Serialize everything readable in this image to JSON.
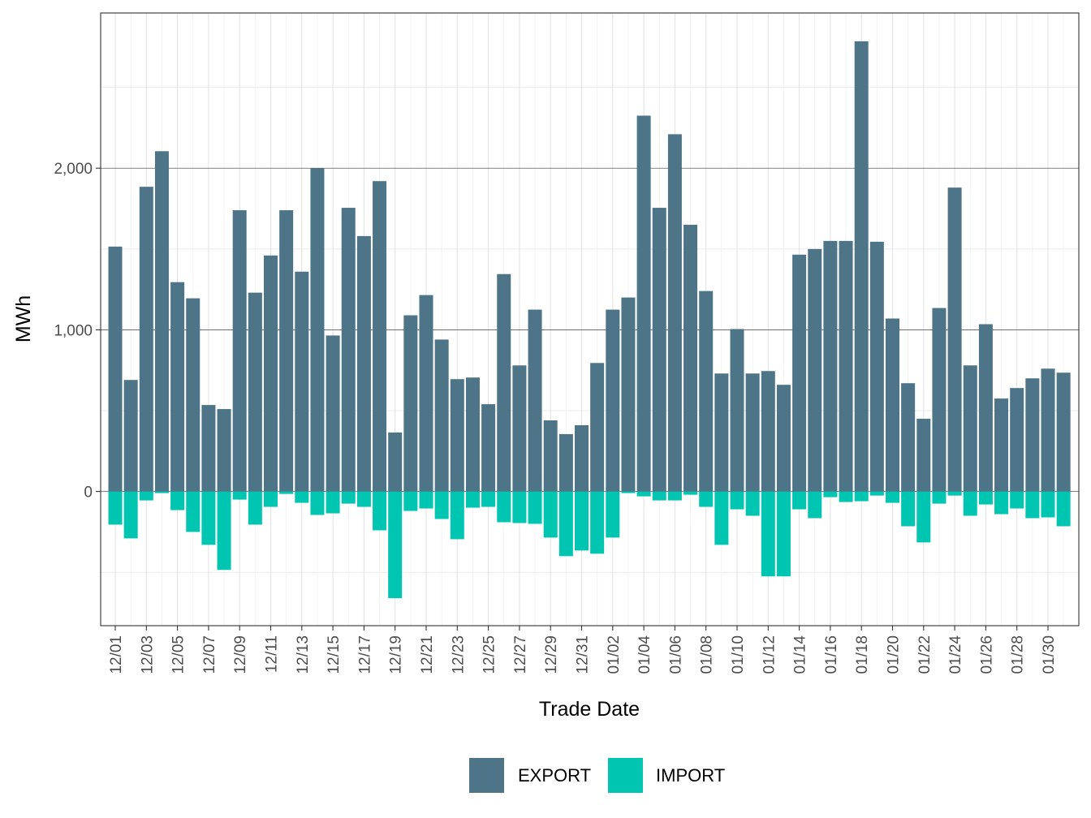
{
  "chart_data": {
    "type": "bar",
    "stacked": true,
    "xlabel": "Trade Date",
    "ylabel": "MWh",
    "ylim": [
      -830,
      2960
    ],
    "y_ticks": [
      0,
      1000,
      2000
    ],
    "y_tick_labels": [
      "0",
      "1,000",
      "2,000"
    ],
    "grid": true,
    "legend_position": "bottom",
    "categories": [
      "12/01",
      "12/02",
      "12/03",
      "12/04",
      "12/05",
      "12/06",
      "12/07",
      "12/08",
      "12/09",
      "12/10",
      "12/11",
      "12/12",
      "12/13",
      "12/14",
      "12/15",
      "12/16",
      "12/17",
      "12/18",
      "12/19",
      "12/20",
      "12/21",
      "12/22",
      "12/23",
      "12/24",
      "12/25",
      "12/26",
      "12/27",
      "12/28",
      "12/29",
      "12/30",
      "12/31",
      "01/01",
      "01/02",
      "01/03",
      "01/04",
      "01/05",
      "01/06",
      "01/07",
      "01/08",
      "01/09",
      "01/10",
      "01/11",
      "01/12",
      "01/13",
      "01/14",
      "01/15",
      "01/16",
      "01/17",
      "01/18",
      "01/19",
      "01/20",
      "01/21",
      "01/22",
      "01/23",
      "01/24",
      "01/25",
      "01/26",
      "01/27",
      "01/28",
      "01/29",
      "01/30",
      "01/31"
    ],
    "x_tick_labels": [
      "12/01",
      "12/03",
      "12/05",
      "12/07",
      "12/09",
      "12/11",
      "12/13",
      "12/15",
      "12/17",
      "12/19",
      "12/21",
      "12/23",
      "12/25",
      "12/27",
      "12/29",
      "12/31",
      "01/02",
      "01/04",
      "01/06",
      "01/08",
      "01/10",
      "01/12",
      "01/14",
      "01/16",
      "01/18",
      "01/20",
      "01/22",
      "01/24",
      "01/26",
      "01/28",
      "01/30"
    ],
    "series": [
      {
        "name": "EXPORT",
        "color": "#4e7488",
        "values": [
          1515,
          690,
          1885,
          2105,
          1295,
          1195,
          535,
          510,
          1740,
          1230,
          1460,
          1740,
          1360,
          2000,
          965,
          1755,
          1580,
          1920,
          365,
          1090,
          1215,
          940,
          695,
          705,
          540,
          1345,
          780,
          1125,
          440,
          355,
          410,
          795,
          1125,
          1200,
          2325,
          1755,
          2210,
          1650,
          1240,
          730,
          1005,
          730,
          745,
          660,
          1465,
          1500,
          1550,
          1550,
          2785,
          1545,
          1070,
          670,
          450,
          1135,
          1880,
          780,
          1035,
          575,
          640,
          700,
          760,
          735
        ]
      },
      {
        "name": "IMPORT",
        "color": "#00c5b0",
        "values": [
          -205,
          -290,
          -55,
          -10,
          -115,
          -250,
          -330,
          -485,
          -50,
          -205,
          -95,
          -15,
          -70,
          -145,
          -135,
          -75,
          -95,
          -240,
          -660,
          -120,
          -105,
          -170,
          -295,
          -100,
          -95,
          -190,
          -195,
          -200,
          -285,
          -400,
          -365,
          -385,
          -285,
          -10,
          -30,
          -55,
          -55,
          -20,
          -95,
          -330,
          -110,
          -150,
          -525,
          -525,
          -110,
          -165,
          -35,
          -65,
          -60,
          -25,
          -70,
          -215,
          -315,
          -75,
          -25,
          -150,
          -80,
          -140,
          -105,
          -165,
          -160,
          -215
        ]
      }
    ]
  }
}
